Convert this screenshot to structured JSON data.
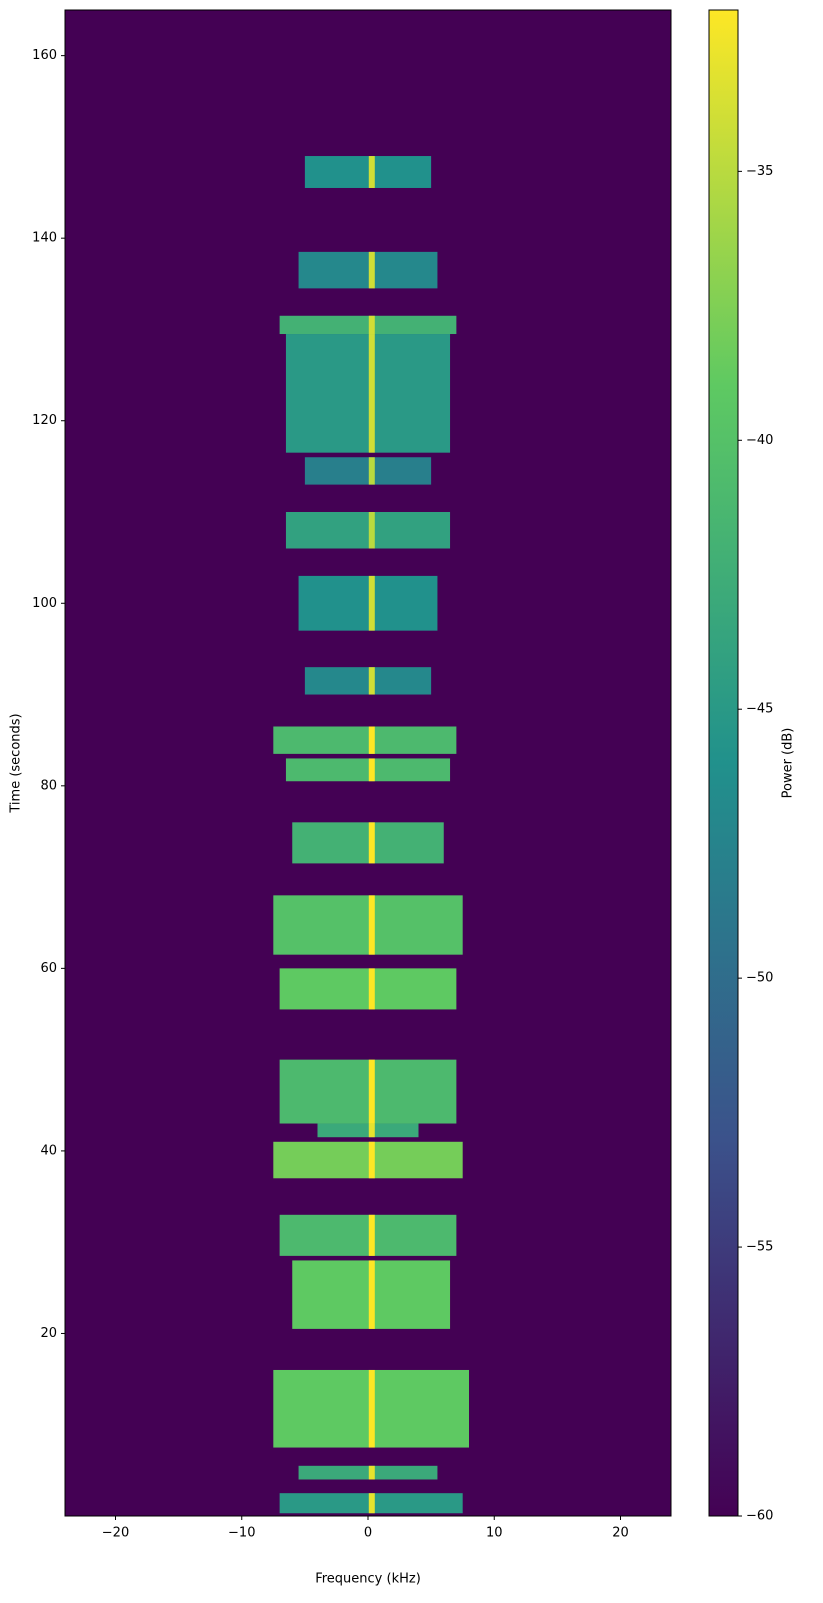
{
  "chart_data": {
    "type": "spectrogram",
    "xlabel": "Frequency (kHz)",
    "ylabel": "Time (seconds)",
    "colorbar_label": "Power (dB)",
    "xlim": [
      -24,
      24
    ],
    "ylim": [
      0,
      165
    ],
    "xticks": [
      {
        "value": -20,
        "label": "−20"
      },
      {
        "value": -10,
        "label": "−10"
      },
      0,
      10,
      20
    ],
    "yticks": [
      20,
      40,
      60,
      80,
      100,
      120,
      140,
      160
    ],
    "clim": [
      -60,
      -32
    ],
    "cticks": [
      {
        "value": -60,
        "label": "−60"
      },
      {
        "value": -55,
        "label": "−55"
      },
      {
        "value": -50,
        "label": "−50"
      },
      {
        "value": -45,
        "label": "−45"
      },
      {
        "value": -40,
        "label": "−40"
      },
      {
        "value": -35,
        "label": "−35"
      }
    ],
    "background_power": -60,
    "center_frequency": 0.3,
    "bursts": [
      {
        "t_start": 0.3,
        "t_end": 2.5,
        "f_low": -7,
        "f_high": 7.5,
        "power": -45,
        "peak": -33
      },
      {
        "t_start": 4,
        "t_end": 5.5,
        "f_low": -5.5,
        "f_high": 5.5,
        "power": -43,
        "peak": -33
      },
      {
        "t_start": 7.5,
        "t_end": 16,
        "f_low": -7.5,
        "f_high": 8,
        "power": -39,
        "peak": -32
      },
      {
        "t_start": 20.5,
        "t_end": 28,
        "f_low": -6,
        "f_high": 6.5,
        "power": -39,
        "peak": -32
      },
      {
        "t_start": 28.5,
        "t_end": 33,
        "f_low": -7,
        "f_high": 7,
        "power": -41,
        "peak": -32
      },
      {
        "t_start": 37,
        "t_end": 41,
        "f_low": -7.5,
        "f_high": 7.5,
        "power": -38,
        "peak": -32
      },
      {
        "t_start": 41.5,
        "t_end": 43,
        "f_low": -4,
        "f_high": 4,
        "power": -43,
        "peak": -33
      },
      {
        "t_start": 43,
        "t_end": 50,
        "f_low": -7,
        "f_high": 7,
        "power": -41,
        "peak": -32
      },
      {
        "t_start": 55.5,
        "t_end": 60,
        "f_low": -7,
        "f_high": 7,
        "power": -39,
        "peak": -32
      },
      {
        "t_start": 61.5,
        "t_end": 68,
        "f_low": -7.5,
        "f_high": 7.5,
        "power": -40,
        "peak": -32
      },
      {
        "t_start": 71.5,
        "t_end": 76,
        "f_low": -6,
        "f_high": 6,
        "power": -42,
        "peak": -32
      },
      {
        "t_start": 80.5,
        "t_end": 83,
        "f_low": -6.5,
        "f_high": 6.5,
        "power": -41,
        "peak": -32
      },
      {
        "t_start": 83.5,
        "t_end": 86.5,
        "f_low": -7.5,
        "f_high": 7,
        "power": -41,
        "peak": -32
      },
      {
        "t_start": 90,
        "t_end": 93,
        "f_low": -5,
        "f_high": 5,
        "power": -47,
        "peak": -34
      },
      {
        "t_start": 97,
        "t_end": 103,
        "f_low": -5.5,
        "f_high": 5.5,
        "power": -46,
        "peak": -34
      },
      {
        "t_start": 106,
        "t_end": 110,
        "f_low": -6.5,
        "f_high": 6.5,
        "power": -44,
        "peak": -35
      },
      {
        "t_start": 113,
        "t_end": 116,
        "f_low": -5,
        "f_high": 5,
        "power": -48,
        "peak": -35
      },
      {
        "t_start": 116.5,
        "t_end": 129.5,
        "f_low": -6.5,
        "f_high": 6.5,
        "power": -45,
        "peak": -34
      },
      {
        "t_start": 129.5,
        "t_end": 131.5,
        "f_low": -7,
        "f_high": 7,
        "power": -42,
        "peak": -34
      },
      {
        "t_start": 134.5,
        "t_end": 138.5,
        "f_low": -5.5,
        "f_high": 5.5,
        "power": -47,
        "peak": -34
      },
      {
        "t_start": 145.5,
        "t_end": 149,
        "f_low": -5,
        "f_high": 5,
        "power": -46,
        "peak": -34
      }
    ]
  }
}
